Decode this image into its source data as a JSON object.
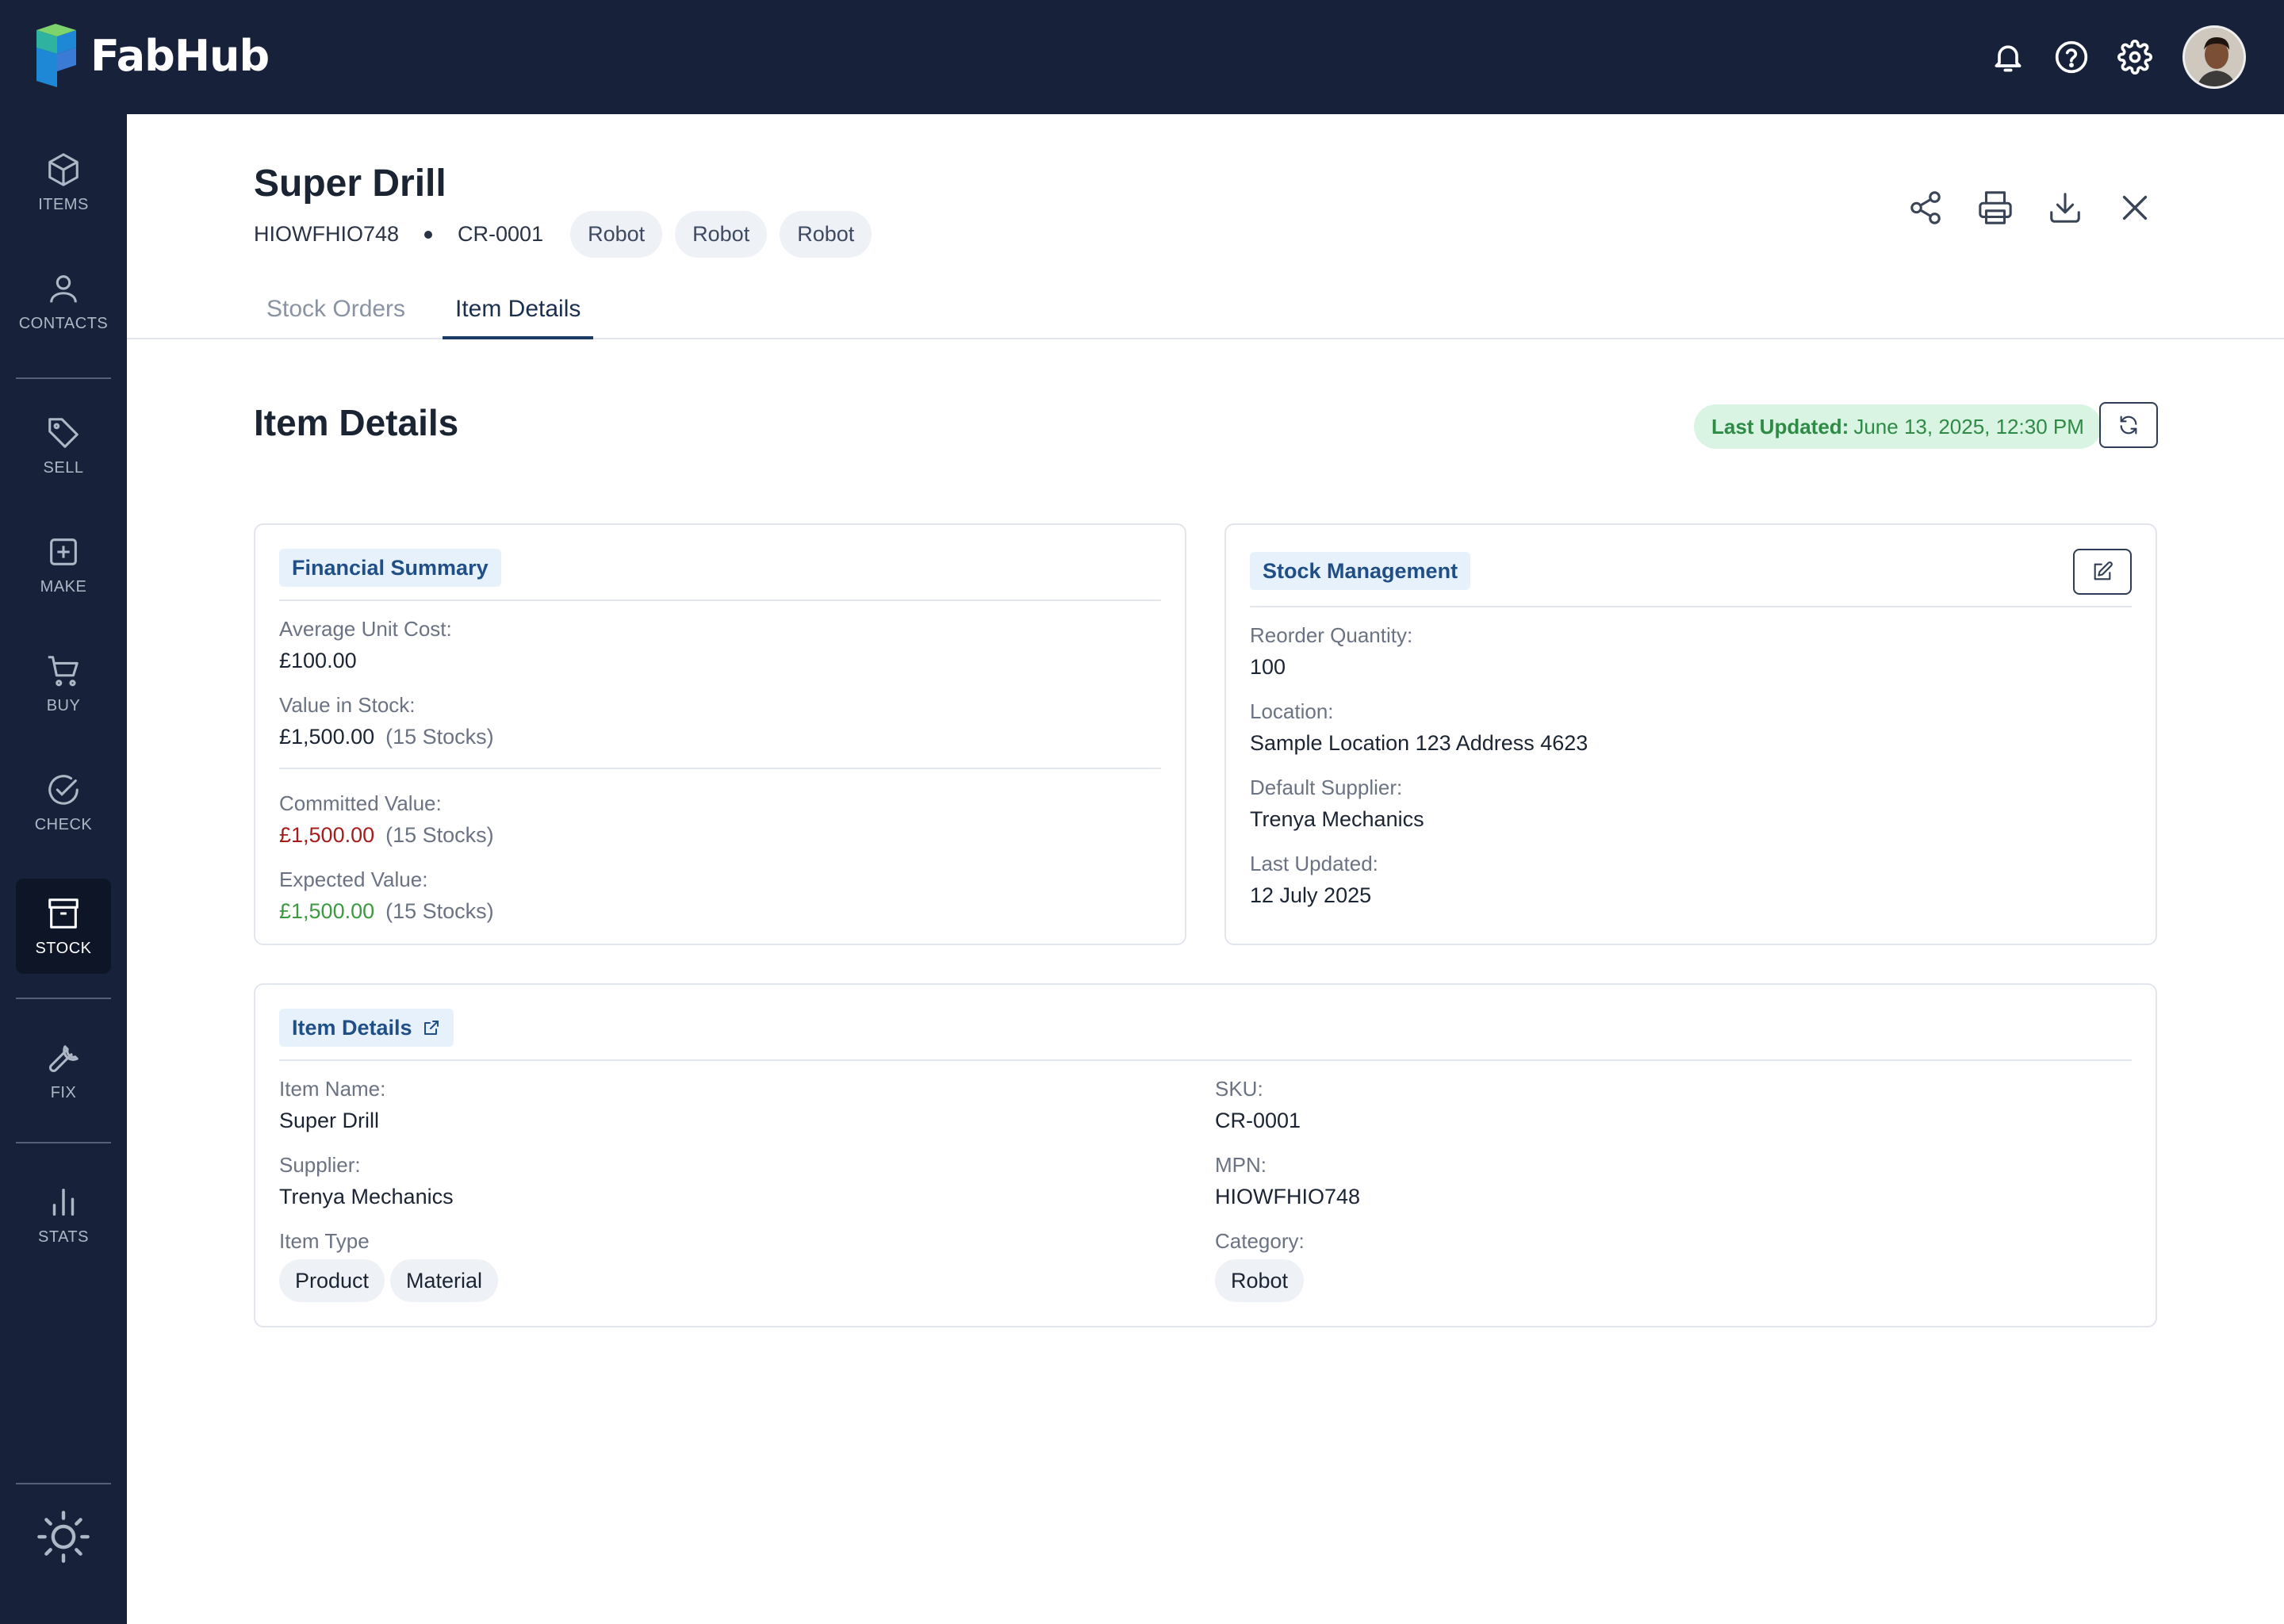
{
  "app": {
    "name": "FabHub"
  },
  "header_icons": [
    "bell-icon",
    "help-icon",
    "settings-icon"
  ],
  "sidebar": {
    "items": [
      {
        "label": "ITEMS",
        "icon": "box-icon"
      },
      {
        "label": "CONTACTS",
        "icon": "person-icon"
      },
      {
        "label": "SELL",
        "icon": "tag-icon"
      },
      {
        "label": "MAKE",
        "icon": "plus-square-icon"
      },
      {
        "label": "BUY",
        "icon": "cart-icon"
      },
      {
        "label": "CHECK",
        "icon": "check-circle-icon"
      },
      {
        "label": "STOCK",
        "icon": "archive-icon"
      },
      {
        "label": "FIX",
        "icon": "wrench-icon"
      },
      {
        "label": "STATS",
        "icon": "bar-chart-icon"
      }
    ],
    "active": "STOCK"
  },
  "item": {
    "title": "Super Drill",
    "mpn": "HIOWFHIO748",
    "sku": "CR-0001",
    "tags": [
      "Robot",
      "Robot",
      "Robot"
    ]
  },
  "tabs": [
    {
      "label": "Stock Orders",
      "active": false
    },
    {
      "label": "Item Details",
      "active": true
    }
  ],
  "section": {
    "title": "Item Details",
    "last_updated_label": "Last Updated:",
    "last_updated_value": "June 13, 2025, 12:30 PM"
  },
  "financial": {
    "badge": "Financial Summary",
    "avg_cost_label": "Average Unit Cost:",
    "avg_cost_value": "£100.00",
    "stock_value_label": "Value in Stock:",
    "stock_value": "£1,500.00",
    "stock_value_qty": "(15 Stocks)",
    "committed_label": "Committed Value:",
    "committed_value": "£1,500.00",
    "committed_qty": "(15 Stocks)",
    "expected_label": "Expected Value:",
    "expected_value": "£1,500.00",
    "expected_qty": "(15 Stocks)"
  },
  "stock_mgmt": {
    "badge": "Stock Management",
    "reorder_label": "Reorder Quantity:",
    "reorder_value": "100",
    "location_label": "Location:",
    "location_value": "Sample Location 123 Address 4623",
    "supplier_label": "Default Supplier:",
    "supplier_value": "Trenya Mechanics",
    "updated_label": "Last Updated:",
    "updated_value": "12 July 2025"
  },
  "details": {
    "badge": "Item Details",
    "name_label": "Item Name:",
    "name_value": "Super Drill",
    "supplier_label": "Supplier:",
    "supplier_value": "Trenya Mechanics",
    "type_label": "Item Type",
    "types": [
      "Product",
      "Material"
    ],
    "sku_label": "SKU:",
    "sku_value": "CR-0001",
    "mpn_label": "MPN:",
    "mpn_value": "HIOWFHIO748",
    "category_label": "Category:",
    "categories": [
      "Robot"
    ]
  },
  "colors": {
    "navy": "#17223a",
    "negative": "#a51c1c",
    "positive": "#3b9a3f",
    "badge_bg": "#e6f1fb",
    "updated_bg": "#d9f4e2"
  }
}
